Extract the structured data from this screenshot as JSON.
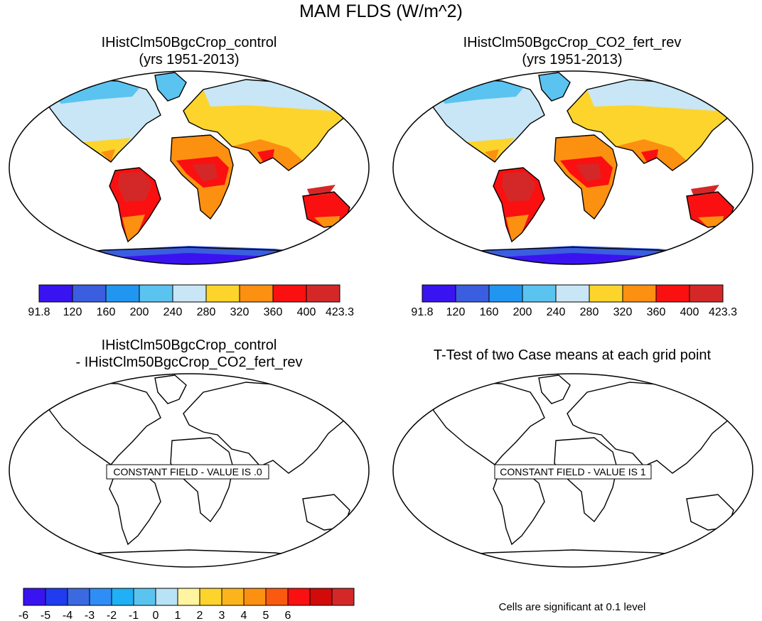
{
  "figure": {
    "title": "MAM FLDS (W/m^2)",
    "note": "Cells are significant at 0.1 level"
  },
  "panels": [
    {
      "title_line1": "IHistClm50BgcCrop_control",
      "title_line2": "(yrs 1951-2013)"
    },
    {
      "title_line1": "IHistClm50BgcCrop_CO2_fert_rev",
      "title_line2": "(yrs 1951-2013)"
    },
    {
      "title_line1": "IHistClm50BgcCrop_control",
      "title_line2": "- IHistClm50BgcCrop_CO2_fert_rev",
      "field_label": "CONSTANT FIELD - VALUE IS .0"
    },
    {
      "title_line1": "T-Test of two Case means at each grid point",
      "title_line2": "",
      "field_label": "CONSTANT FIELD - VALUE IS 1"
    }
  ],
  "colors": {
    "abs_palette": [
      "#3a14f0",
      "#3b5de0",
      "#2196f0",
      "#5bc3f0",
      "#c8e6f5",
      "#fcd42c",
      "#fc9010",
      "#fa1010",
      "#d42828"
    ],
    "diff_palette": [
      "#3a14f0",
      "#1f3cf0",
      "#3b6ae0",
      "#2f8ef5",
      "#1fb0f5",
      "#5bc3f0",
      "#b8e2f5",
      "#fff4a0",
      "#fcd42c",
      "#fcb41c",
      "#fc9010",
      "#fa5a10",
      "#fa1010",
      "#d20a0a",
      "#d42828"
    ]
  },
  "chart_data": [
    {
      "type": "heatmap",
      "title": "IHistClm50BgcCrop_control (yrs 1951-2013)",
      "colorbar_ticks": [
        "91.8",
        "120",
        "160",
        "200",
        "240",
        "280",
        "320",
        "360",
        "400",
        "423.3"
      ],
      "colorbar_range": [
        91.8,
        423.3
      ]
    },
    {
      "type": "heatmap",
      "title": "IHistClm50BgcCrop_CO2_fert_rev (yrs 1951-2013)",
      "colorbar_ticks": [
        "91.8",
        "120",
        "160",
        "200",
        "240",
        "280",
        "320",
        "360",
        "400",
        "423.3"
      ],
      "colorbar_range": [
        91.8,
        423.3
      ]
    },
    {
      "type": "heatmap",
      "title": "IHistClm50BgcCrop_control - IHistClm50BgcCrop_CO2_fert_rev",
      "colorbar_ticks": [
        "-6",
        "-5",
        "-4",
        "-3",
        "-2",
        "-1",
        "0",
        "1",
        "2",
        "3",
        "4",
        "5",
        "6"
      ],
      "constant_value": 0
    },
    {
      "type": "heatmap",
      "title": "T-Test of two Case means at each grid point",
      "constant_value": 1
    }
  ]
}
